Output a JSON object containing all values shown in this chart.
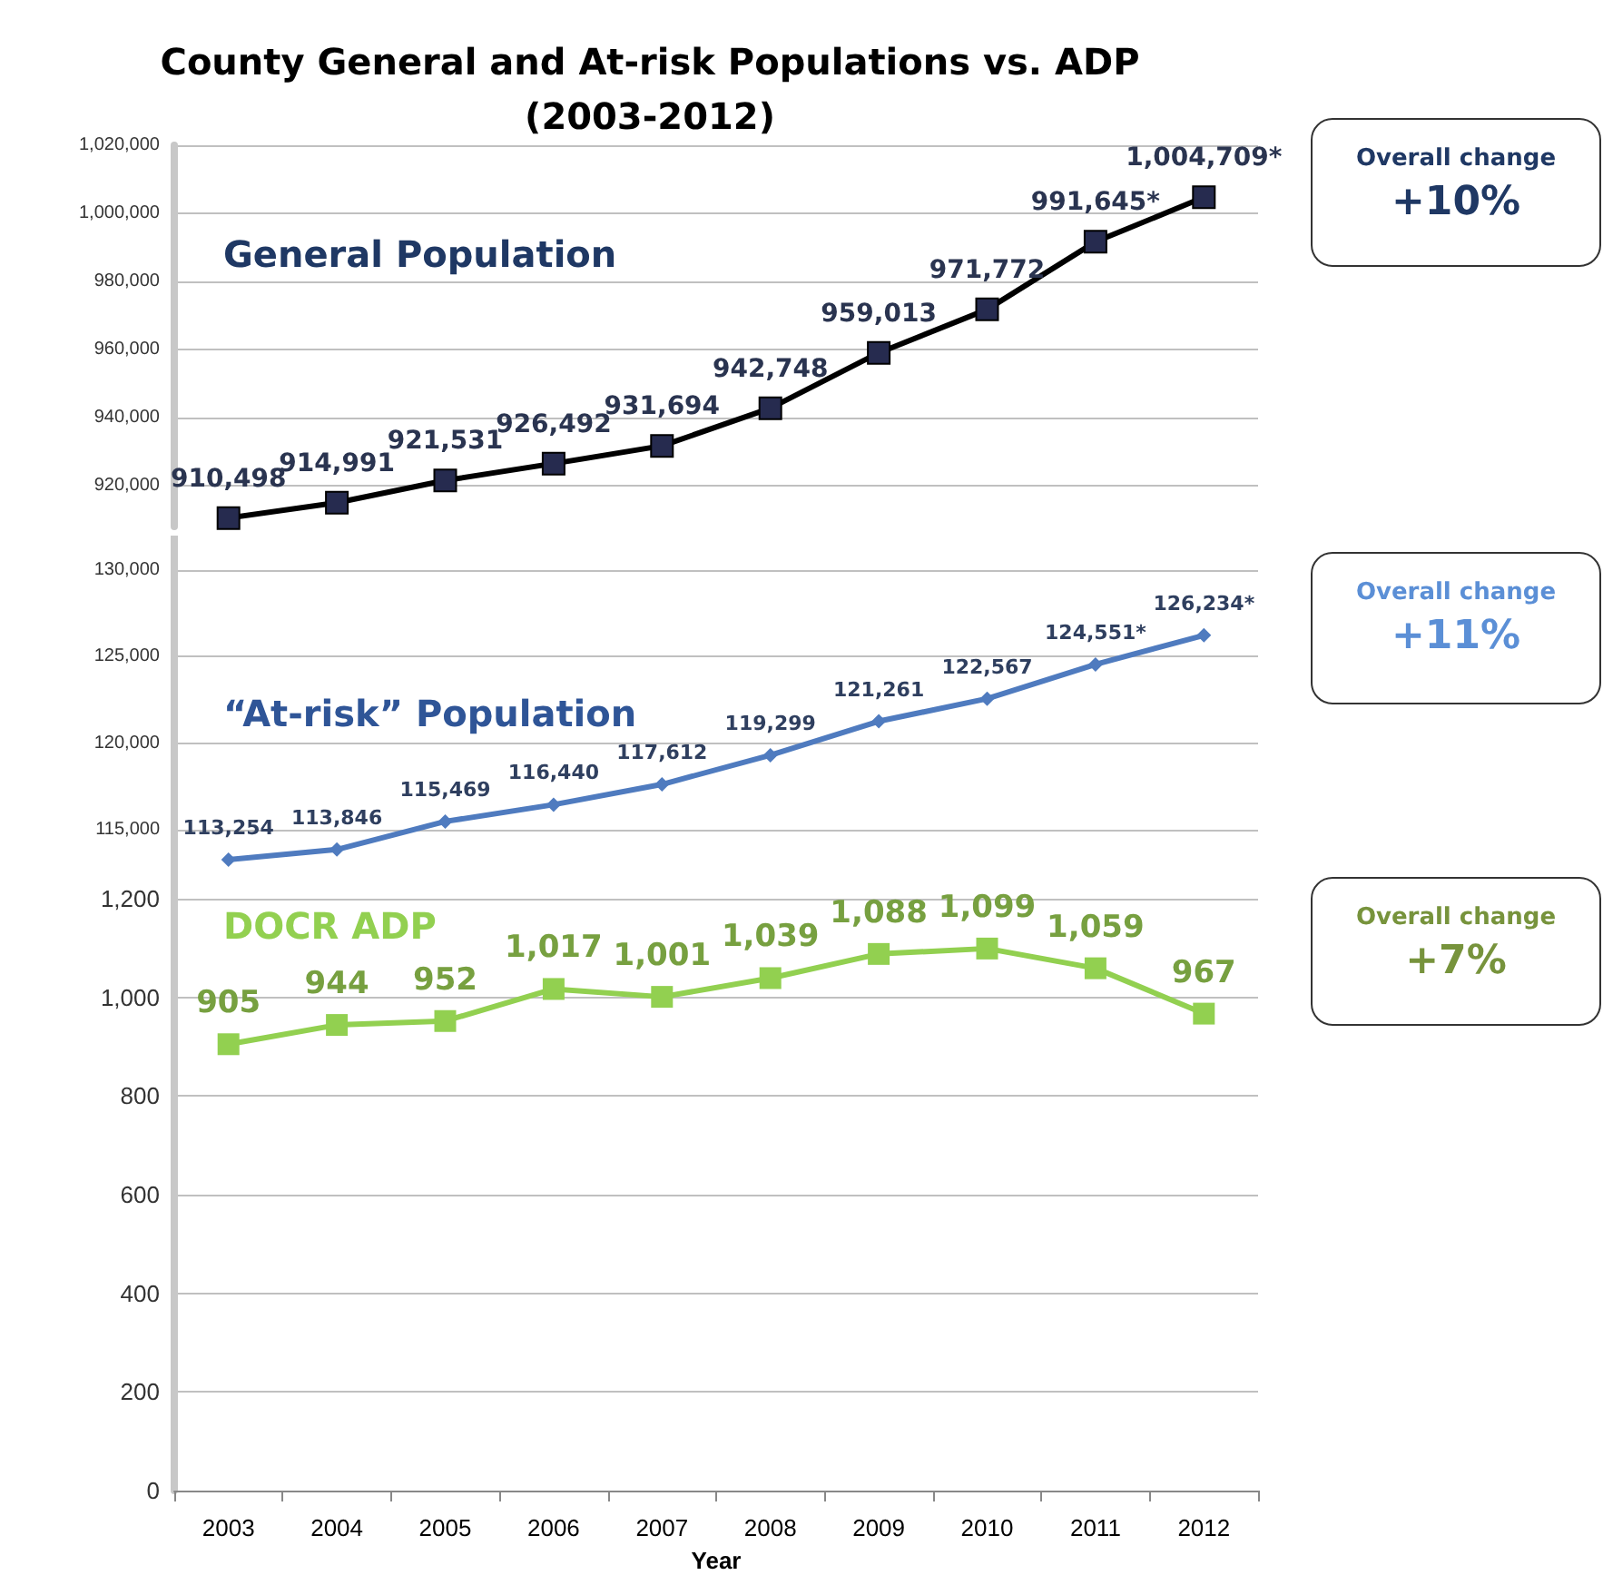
{
  "chart_data": [
    {
      "type": "line",
      "title": "County General and At-risk Populations vs. ADP\n(2003-2012)",
      "categories": [
        "2003",
        "2004",
        "2005",
        "2006",
        "2007",
        "2008",
        "2009",
        "2010",
        "2011",
        "2012"
      ],
      "series": [
        {
          "name": "General Population",
          "color": "#262b4f",
          "values": [
            910498,
            914991,
            921531,
            926492,
            931694,
            942748,
            959013,
            971772,
            991645,
            1004709
          ],
          "value_labels": [
            "910,498",
            "914,991",
            "921,531",
            "926,492",
            "931,694",
            "942,748",
            "959,013",
            "971,772",
            "991,645*",
            "1,004,709*"
          ]
        }
      ],
      "ylim": [
        908000,
        1020000
      ],
      "yticks": [
        {
          "value": 920000,
          "label": "920,000"
        },
        {
          "value": 940000,
          "label": "940,000"
        },
        {
          "value": 960000,
          "label": "960,000"
        },
        {
          "value": 980000,
          "label": "980,000"
        },
        {
          "value": 1000000,
          "label": "1,000,000"
        },
        {
          "value": 1020000,
          "label": "1,020,000"
        }
      ],
      "grid": "y",
      "marker": "square",
      "tick_labels": "y",
      "annotations": [
        "Overall change",
        "+10%"
      ]
    },
    {
      "type": "line",
      "categories": [
        "2003",
        "2004",
        "2005",
        "2006",
        "2007",
        "2008",
        "2009",
        "2010",
        "2011",
        "2012"
      ],
      "series": [
        {
          "name": "“At-risk” Population",
          "color": "#4f7bbf",
          "values": [
            113254,
            113846,
            115469,
            116440,
            117612,
            119299,
            121261,
            122567,
            124551,
            126234
          ],
          "value_labels": [
            "113,254",
            "113,846",
            "115,469",
            "116,440",
            "117,612",
            "119,299",
            "121,261",
            "122,567",
            "124,551*",
            "126,234*"
          ]
        }
      ],
      "ylim": [
        111000,
        132000
      ],
      "yticks": [
        {
          "value": 115000,
          "label": "115,000"
        },
        {
          "value": 120000,
          "label": "120,000"
        },
        {
          "value": 125000,
          "label": "125,000"
        },
        {
          "value": 130000,
          "label": "130,000"
        }
      ],
      "grid": "y",
      "marker": "diamond",
      "tick_labels": "y",
      "annotations": [
        "Overall change",
        "+11%"
      ]
    },
    {
      "type": "line",
      "xlabel": "Year",
      "categories": [
        "2003",
        "2004",
        "2005",
        "2006",
        "2007",
        "2008",
        "2009",
        "2010",
        "2011",
        "2012"
      ],
      "series": [
        {
          "name": "DOCR ADP",
          "color": "#92d050",
          "values": [
            905,
            944,
            952,
            1017,
            1001,
            1039,
            1088,
            1099,
            1059,
            967
          ],
          "value_labels": [
            "905",
            "944",
            "952",
            "1,017",
            "1,001",
            "1,039",
            "1,088",
            "1,099",
            "1,059",
            "967"
          ]
        }
      ],
      "ylim": [
        0,
        1200
      ],
      "yticks": [
        0,
        200,
        400,
        600,
        800,
        {
          "value": 1000,
          "label": "1,000"
        },
        {
          "value": 1200,
          "label": "1,200"
        }
      ],
      "grid": "y",
      "marker": "square",
      "annotations": [
        "Overall change",
        "+7%"
      ]
    }
  ]
}
